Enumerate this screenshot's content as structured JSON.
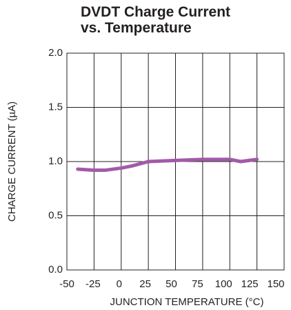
{
  "chart_data": {
    "type": "line",
    "title": "DVDT Charge Current\nvs. Temperature",
    "xlabel": "JUNCTION TEMPERATURE (°C)",
    "ylabel": "CHARGE CURRENT (µA)",
    "x": [
      -40,
      -25,
      -15,
      0,
      10,
      25,
      50,
      75,
      100,
      110,
      125
    ],
    "series": [
      {
        "name": "DVDT Charge Current",
        "color": "#a25aa8",
        "values": [
          0.93,
          0.92,
          0.92,
          0.94,
          0.96,
          1.0,
          1.01,
          1.02,
          1.02,
          1.0,
          1.02
        ]
      }
    ],
    "xlim": [
      -50,
      150
    ],
    "xticks": [
      -50,
      -25,
      0,
      25,
      50,
      75,
      100,
      125,
      150
    ],
    "ylim": [
      0,
      2
    ],
    "yticks": [
      {
        "value": 0,
        "label": "0.0"
      },
      0.5,
      {
        "value": 1,
        "label": "1.0"
      },
      1.5,
      {
        "value": 2,
        "label": "2.0"
      }
    ],
    "grid": true
  }
}
